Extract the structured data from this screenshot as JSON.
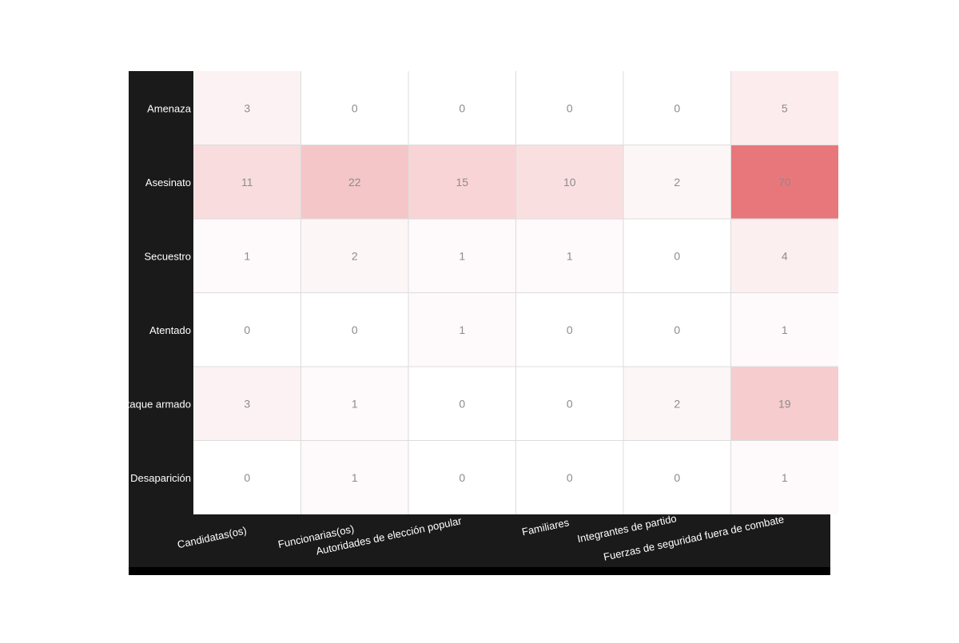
{
  "chart_data": {
    "type": "heatmap",
    "rows": [
      "Amenaza",
      "Asesinato",
      "Secuestro",
      "Atentado",
      "Ataque armado",
      "Desaparición"
    ],
    "columns": [
      "Candidatas(os)",
      "Funcionarias(os)",
      "Autoridades de elección popular",
      "Familiares",
      "Integrantes de partido",
      "Fuerzas de seguridad fuera de combate"
    ],
    "values": [
      [
        3,
        0,
        0,
        0,
        0,
        5
      ],
      [
        11,
        22,
        15,
        10,
        2,
        70
      ],
      [
        1,
        2,
        1,
        1,
        0,
        4
      ],
      [
        0,
        0,
        1,
        0,
        0,
        1
      ],
      [
        3,
        1,
        0,
        0,
        2,
        19
      ],
      [
        0,
        1,
        0,
        0,
        0,
        1
      ]
    ],
    "color_scale": {
      "low": "#ffffff",
      "high": "#e8777c"
    },
    "background_colors": {
      "label_panel": "#1a1a1a",
      "value_text": "#8c8c8c",
      "grid": "#dcdcdc"
    },
    "grid": true
  }
}
